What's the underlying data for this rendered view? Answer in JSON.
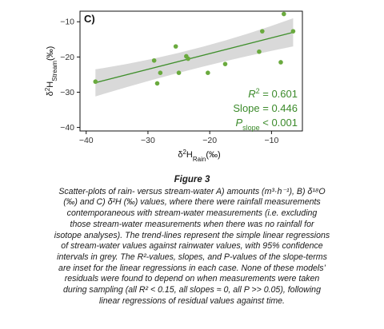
{
  "chart_data": {
    "type": "scatter",
    "panel_label": "C)",
    "xlabel_main": "δ",
    "xlabel_sup": "2",
    "xlabel_base": "H",
    "xlabel_sub": "Rain",
    "xlabel_unit": "(‰)",
    "ylabel_main": "δ",
    "ylabel_sup": "2",
    "ylabel_base": "H",
    "ylabel_sub": "Stream",
    "ylabel_unit": "(‰)",
    "xlim": [
      -41,
      -5
    ],
    "ylim": [
      -41,
      -7
    ],
    "xticks": [
      -40,
      -30,
      -20,
      -10
    ],
    "yticks": [
      -10,
      -20,
      -30,
      -40
    ],
    "grid": false,
    "points": [
      {
        "x": -38.5,
        "y": -27.0
      },
      {
        "x": -29.0,
        "y": -21.0
      },
      {
        "x": -28.5,
        "y": -27.5
      },
      {
        "x": -28.0,
        "y": -24.5
      },
      {
        "x": -25.5,
        "y": -17.0
      },
      {
        "x": -25.0,
        "y": -24.5
      },
      {
        "x": -23.8,
        "y": -19.8
      },
      {
        "x": -23.5,
        "y": -20.5
      },
      {
        "x": -20.3,
        "y": -24.5
      },
      {
        "x": -17.5,
        "y": -22.0
      },
      {
        "x": -12.0,
        "y": -18.5
      },
      {
        "x": -11.5,
        "y": -12.7
      },
      {
        "x": -8.5,
        "y": -21.5
      },
      {
        "x": -8.0,
        "y": -7.8
      },
      {
        "x": -6.5,
        "y": -12.7
      }
    ],
    "fit": {
      "slope": 0.446,
      "x_start": -38.5,
      "x_end": -6.5,
      "y_start": -27.3,
      "y_end": -13.0,
      "ci_upper_start": -23.5,
      "ci_upper_mid": -19.2,
      "ci_upper_end": -9.0,
      "ci_lower_start": -31.2,
      "ci_lower_mid": -22.6,
      "ci_lower_end": -17.0,
      "x_mid": -22.5
    },
    "stats": {
      "r2_label": "R",
      "r2_sup": "2",
      "r2_value": " = 0.601",
      "slope_text": "Slope = 0.446",
      "p_label": "P",
      "p_sub": "slope",
      "p_value": " < 0.001"
    },
    "colors": {
      "points": "#6aaa3e",
      "line": "#3f8f2c",
      "ci": "#d9d9d9",
      "stats": "#3b8a2a"
    }
  },
  "caption": {
    "title": "Figure 3",
    "body": "Scatter-plots of rain- versus stream-water A) amounts (m³·h⁻¹), B) δ¹⁸O\n(‰) and C) δ²H (‰) values, where there were rainfall measurements\ncontemporaneous with stream-water measurements (i.e. excluding\nthose stream-water measurements when there was no rainfall for\nisotope analyses). The trend-lines represent the simple linear regressions\nof stream-water values against rainwater values, with 95% confidence\nintervals in grey. The R²-values, slopes, and P-values of the slope-terms\nare inset for the linear regressions in each case. None of these models’\nresiduals were found to depend on when measurements were taken\nduring sampling (all R² < 0.15, all slopes ≈ 0, all P >> 0.05), following\nlinear regressions of residual values against time."
  }
}
